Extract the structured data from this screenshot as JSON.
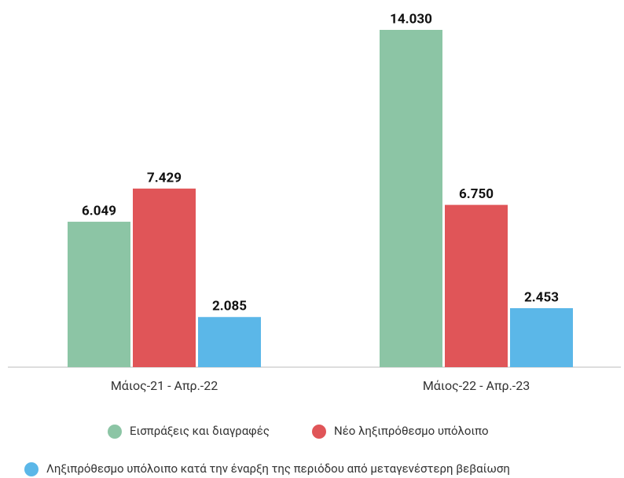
{
  "chart_data": {
    "type": "bar",
    "categories": [
      "Μάιος-21 - Απρ.-22",
      "Μάιος-22 - Απρ.-23"
    ],
    "series": [
      {
        "name": "Εισπράξεις και διαγραφές",
        "color": "#8cc5a5",
        "values": [
          6049,
          14030
        ],
        "value_labels": [
          "6.049",
          "14.030"
        ]
      },
      {
        "name": "Νέο ληξιπρόθεσμο υπόλοιπο",
        "color": "#e05558",
        "values": [
          7429,
          6750
        ],
        "value_labels": [
          "7.429",
          "6.750"
        ]
      },
      {
        "name": "Ληξιπρόθεσμο υπόλοιπο κατά την έναρξη της περιόδου από μεταγενέστερη βεβαίωση",
        "color": "#5bb7e8",
        "values": [
          2085,
          2453
        ],
        "value_labels": [
          "2.085",
          "2.453"
        ]
      }
    ]
  }
}
